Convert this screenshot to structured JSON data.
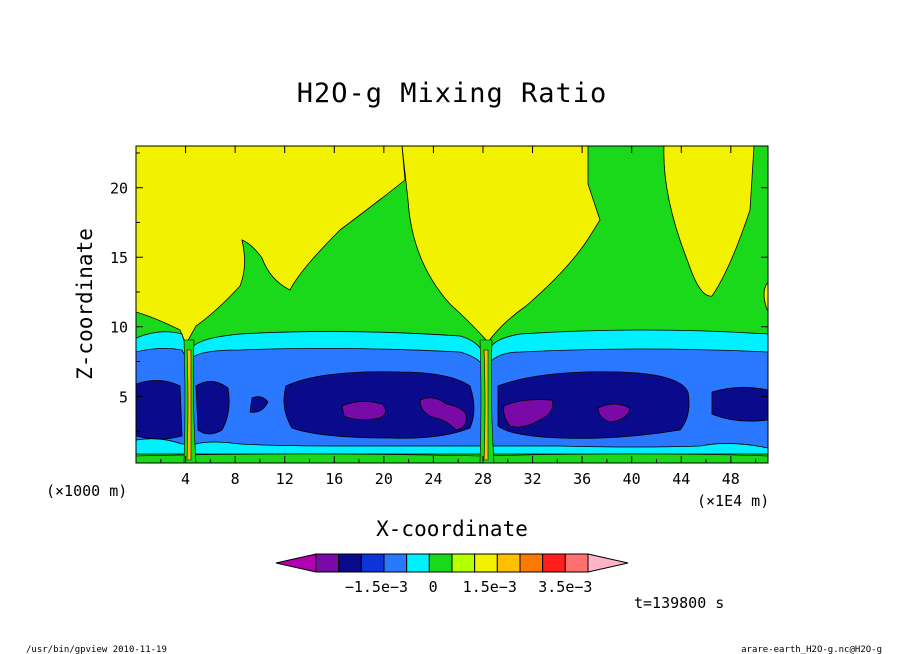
{
  "chart_data": {
    "type": "heatmap",
    "subtype": "filled-contour",
    "title": "H2O-g Mixing Ratio",
    "xlabel": "X-coordinate",
    "ylabel": "Z-coordinate",
    "x_unit_left": "(×1000 m)",
    "x_unit_right": "(×1E4 m)",
    "x_ticks": [
      "4",
      "8",
      "12",
      "16",
      "20",
      "24",
      "28",
      "32",
      "36",
      "40",
      "44",
      "48"
    ],
    "x_tick_values": [
      4,
      8,
      12,
      16,
      20,
      24,
      28,
      32,
      36,
      40,
      44,
      48
    ],
    "y_ticks": [
      "5",
      "10",
      "15",
      "20"
    ],
    "y_tick_values": [
      5,
      10,
      15,
      20
    ],
    "xlim": [
      0,
      51
    ],
    "ylim": [
      0.2,
      23
    ],
    "time_label": "t=139800 s",
    "colorbar": {
      "levels": [
        -0.0025,
        -0.002,
        -0.0015,
        -0.001,
        -0.0005,
        0,
        0.0005,
        0.001,
        0.0015,
        0.002,
        0.0025,
        0.003,
        0.0035
      ],
      "colors": [
        "#b000b0",
        "#7a0aa8",
        "#0a0a8c",
        "#0c34d8",
        "#2a78ff",
        "#00f0ff",
        "#1ad81a",
        "#b4ff00",
        "#f2f200",
        "#ffc000",
        "#ff7800",
        "#ff1e1e",
        "#ff7070",
        "#ffb4c8"
      ],
      "labels": [
        "−1.5e−3",
        "0",
        "1.5e−3",
        "3.5e−3"
      ],
      "label_values": [
        -0.0015,
        0,
        0.0015,
        0.0035
      ]
    },
    "field_bands": [
      {
        "name": "upper moist",
        "color": "#f2f200"
      },
      {
        "name": "transition",
        "color": "#1ad81a"
      },
      {
        "name": "cyan layer",
        "color": "#00f0ff"
      },
      {
        "name": "blue layer",
        "color": "#2a78ff"
      },
      {
        "name": "dark blue layer",
        "color": "#0a0a8c"
      },
      {
        "name": "purple cores",
        "color": "#7a0aa8"
      }
    ]
  },
  "footer": {
    "left": "/usr/bin/gpview  2010-11-19",
    "right": "arare-earth_H2O-g.nc@H2O-g"
  }
}
